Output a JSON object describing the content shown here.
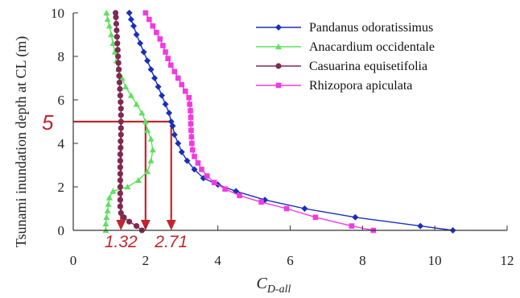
{
  "chart_data": {
    "type": "line",
    "xlabel": "C",
    "xlabel_sub": "D-all",
    "ylabel": "Tsunami inundation depth at CL (m)",
    "xlim": [
      0,
      12
    ],
    "ylim": [
      0,
      10
    ],
    "xticks": [
      "0",
      "2",
      "4",
      "6",
      "8",
      "10",
      "12"
    ],
    "yticks": [
      "0",
      "2",
      "4",
      "6",
      "8",
      "10"
    ],
    "grid": false,
    "legend_position": "top-right",
    "series": [
      {
        "name": "Pandanus odoratissimus",
        "color": "#1a2fb8",
        "marker": "diamond",
        "points": [
          [
            10.5,
            0
          ],
          [
            9.6,
            0.2
          ],
          [
            7.8,
            0.6
          ],
          [
            6.4,
            1
          ],
          [
            5.3,
            1.4
          ],
          [
            4.5,
            1.8
          ],
          [
            4.0,
            2.1
          ],
          [
            3.6,
            2.4
          ],
          [
            3.35,
            2.8
          ],
          [
            3.15,
            3.2
          ],
          [
            3.0,
            3.6
          ],
          [
            2.9,
            4.0
          ],
          [
            2.8,
            4.4
          ],
          [
            2.75,
            4.8
          ],
          [
            2.71,
            5
          ],
          [
            2.65,
            5.4
          ],
          [
            2.55,
            5.8
          ],
          [
            2.45,
            6.2
          ],
          [
            2.35,
            6.6
          ],
          [
            2.25,
            7.0
          ],
          [
            2.15,
            7.4
          ],
          [
            2.05,
            7.8
          ],
          [
            1.95,
            8.2
          ],
          [
            1.85,
            8.6
          ],
          [
            1.75,
            9.0
          ],
          [
            1.67,
            9.4
          ],
          [
            1.6,
            9.7
          ],
          [
            1.55,
            10
          ]
        ]
      },
      {
        "name": "Anacardium occidentale",
        "color": "#5fe05f",
        "marker": "triangle",
        "points": [
          [
            0.9,
            0
          ],
          [
            0.9,
            0.3
          ],
          [
            0.92,
            0.6
          ],
          [
            0.95,
            0.9
          ],
          [
            0.97,
            1.2
          ],
          [
            1.0,
            1.5
          ],
          [
            1.1,
            1.8
          ],
          [
            1.5,
            2.0
          ],
          [
            1.8,
            2.3
          ],
          [
            2.05,
            2.7
          ],
          [
            2.15,
            3.2
          ],
          [
            2.2,
            3.7
          ],
          [
            2.15,
            4.2
          ],
          [
            2.05,
            4.6
          ],
          [
            2.0,
            5.0
          ],
          [
            1.9,
            5.4
          ],
          [
            1.75,
            5.8
          ],
          [
            1.6,
            6.2
          ],
          [
            1.45,
            6.6
          ],
          [
            1.35,
            7.0
          ],
          [
            1.25,
            7.4
          ],
          [
            1.2,
            7.8
          ],
          [
            1.15,
            8.2
          ],
          [
            1.1,
            8.6
          ],
          [
            1.05,
            9.0
          ],
          [
            1.0,
            9.4
          ],
          [
            0.95,
            9.7
          ],
          [
            0.92,
            10
          ]
        ]
      },
      {
        "name": "Casuarina equisetifolia",
        "color": "#7e2a52",
        "marker": "circle",
        "points": [
          [
            1.9,
            0
          ],
          [
            1.75,
            0.2
          ],
          [
            1.55,
            0.4
          ],
          [
            1.4,
            0.6
          ],
          [
            1.32,
            0.8
          ],
          [
            1.3,
            1.1
          ],
          [
            1.3,
            1.4
          ],
          [
            1.3,
            1.7
          ],
          [
            1.3,
            2.0
          ],
          [
            1.3,
            2.3
          ],
          [
            1.3,
            2.6
          ],
          [
            1.3,
            2.9
          ],
          [
            1.3,
            3.2
          ],
          [
            1.3,
            3.5
          ],
          [
            1.31,
            3.8
          ],
          [
            1.31,
            4.1
          ],
          [
            1.32,
            4.4
          ],
          [
            1.32,
            4.7
          ],
          [
            1.32,
            5.0
          ],
          [
            1.32,
            5.3
          ],
          [
            1.32,
            5.6
          ],
          [
            1.31,
            5.9
          ],
          [
            1.3,
            6.2
          ],
          [
            1.29,
            6.5
          ],
          [
            1.28,
            6.8
          ],
          [
            1.27,
            7.1
          ],
          [
            1.26,
            7.4
          ],
          [
            1.25,
            7.7
          ],
          [
            1.24,
            8.0
          ],
          [
            1.23,
            8.3
          ],
          [
            1.22,
            8.6
          ],
          [
            1.21,
            8.9
          ],
          [
            1.2,
            9.2
          ],
          [
            1.19,
            9.5
          ],
          [
            1.18,
            9.8
          ],
          [
            1.17,
            10
          ]
        ]
      },
      {
        "name": "Rhizopora apiculata",
        "color": "#f23ae0",
        "marker": "square",
        "points": [
          [
            8.3,
            0
          ],
          [
            7.7,
            0.2
          ],
          [
            6.7,
            0.6
          ],
          [
            5.9,
            1.0
          ],
          [
            5.2,
            1.3
          ],
          [
            4.6,
            1.6
          ],
          [
            4.2,
            1.9
          ],
          [
            3.9,
            2.2
          ],
          [
            3.7,
            2.5
          ],
          [
            3.55,
            2.8
          ],
          [
            3.45,
            3.1
          ],
          [
            3.35,
            3.4
          ],
          [
            3.3,
            3.7
          ],
          [
            3.28,
            4.0
          ],
          [
            3.27,
            4.3
          ],
          [
            3.26,
            4.6
          ],
          [
            3.25,
            4.9
          ],
          [
            3.25,
            5.2
          ],
          [
            3.24,
            5.5
          ],
          [
            3.22,
            5.8
          ],
          [
            3.2,
            6.1
          ],
          [
            3.1,
            6.4
          ],
          [
            3.0,
            6.7
          ],
          [
            2.9,
            7.0
          ],
          [
            2.8,
            7.3
          ],
          [
            2.7,
            7.6
          ],
          [
            2.62,
            7.9
          ],
          [
            2.55,
            8.2
          ],
          [
            2.48,
            8.5
          ],
          [
            2.4,
            8.8
          ],
          [
            2.3,
            9.1
          ],
          [
            2.2,
            9.4
          ],
          [
            2.1,
            9.7
          ],
          [
            2.0,
            10
          ]
        ]
      }
    ],
    "annotations": {
      "color": "#c0262d",
      "y_level": 5,
      "y_label": "5",
      "x_values": [
        1.32,
        2.0,
        2.71
      ],
      "x_labels": [
        "1.32",
        "2.71"
      ]
    }
  }
}
